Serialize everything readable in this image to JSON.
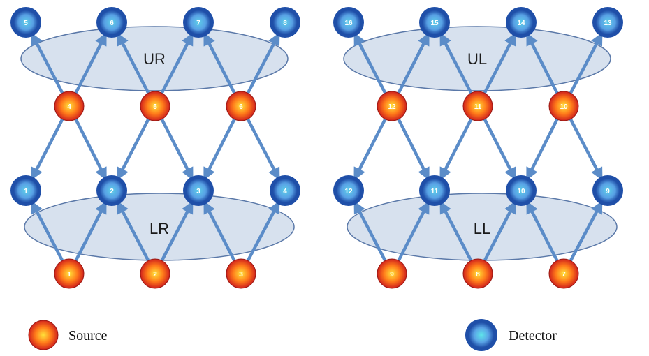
{
  "colors": {
    "arrow": "#5b8cc8",
    "ellipse_fill": "#d7e1ee",
    "ellipse_stroke": "#5a78a8",
    "source_center": "#ffe33a",
    "source_mid": "#ff7a1a",
    "source_edge": "#d0221c",
    "detector_outer": "#1f4fa8",
    "detector_mid": "#5aa3e6",
    "detector_center": "#5ee6ea"
  },
  "panels": [
    {
      "id": "right",
      "upper_region": "UR",
      "lower_region": "LR",
      "upper_sources": [
        "4",
        "5",
        "6"
      ],
      "lower_sources": [
        "1",
        "2",
        "3"
      ],
      "top_detectors": [
        "5",
        "6",
        "7",
        "8"
      ],
      "bottom_detectors": [
        "1",
        "2",
        "3",
        "4"
      ]
    },
    {
      "id": "left",
      "upper_region": "UL",
      "lower_region": "LL",
      "upper_sources": [
        "12",
        "11",
        "10"
      ],
      "lower_sources": [
        "9",
        "8",
        "7"
      ],
      "top_detectors": [
        "16",
        "15",
        "14",
        "13"
      ],
      "bottom_detectors": [
        "12",
        "11",
        "10",
        "9"
      ]
    }
  ],
  "legend": {
    "source": {
      "icon": "source-icon",
      "label": "Source"
    },
    "detector": {
      "icon": "detector-icon",
      "label": "Detector"
    }
  }
}
